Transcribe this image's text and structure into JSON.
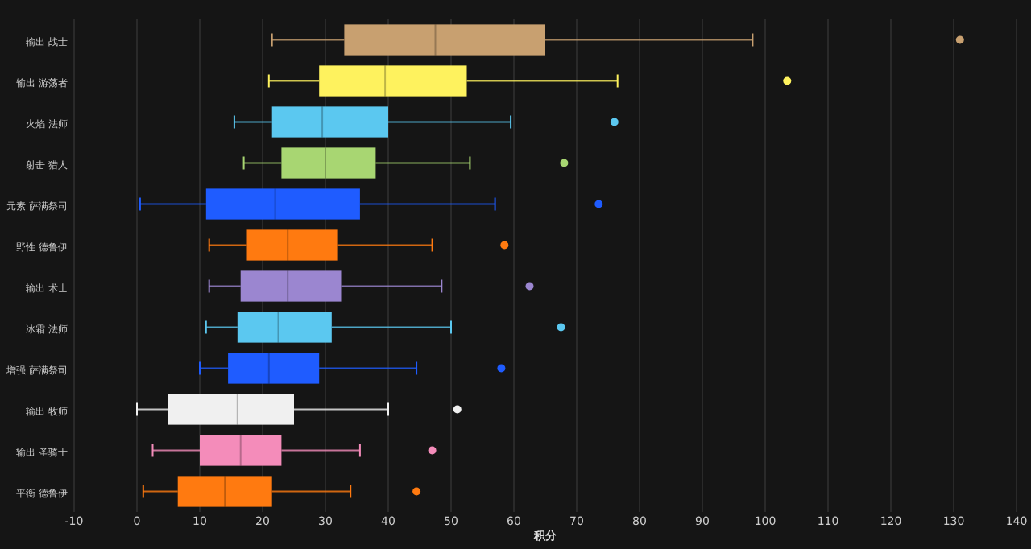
{
  "chart_data": {
    "type": "box",
    "orientation": "horizontal",
    "xlabel": "积分",
    "categories": [
      "输出 战士",
      "输出 游荡者",
      "火焰 法师",
      "射击 猎人",
      "元素 萨满祭司",
      "野性 德鲁伊",
      "输出 术士",
      "冰霜 法师",
      "增强 萨满祭司",
      "输出 牧师",
      "输出 圣骑士",
      "平衡 德鲁伊"
    ],
    "colors": [
      "#c8a070",
      "#fef25e",
      "#5bc8f0",
      "#a8d672",
      "#1f5cff",
      "#ff7a10",
      "#9b86d0",
      "#5bc8f0",
      "#1f5cff",
      "#f0f0f0",
      "#f48cba",
      "#ff7a10"
    ],
    "boxes": [
      {
        "low": 21.5,
        "q1": 33,
        "median": 47.5,
        "q3": 65,
        "high": 98,
        "outliers": [
          131
        ]
      },
      {
        "low": 21,
        "q1": 29,
        "median": 39.5,
        "q3": 52.5,
        "high": 76.5,
        "outliers": [
          103.5
        ]
      },
      {
        "low": 15.5,
        "q1": 21.5,
        "median": 29.5,
        "q3": 40,
        "high": 59.5,
        "outliers": [
          76
        ]
      },
      {
        "low": 17,
        "q1": 23,
        "median": 30,
        "q3": 38,
        "high": 53,
        "outliers": [
          68
        ]
      },
      {
        "low": 0.5,
        "q1": 11,
        "median": 22,
        "q3": 35.5,
        "high": 57,
        "outliers": [
          73.5
        ]
      },
      {
        "low": 11.5,
        "q1": 17.5,
        "median": 24,
        "q3": 32,
        "high": 47,
        "outliers": [
          58.5
        ]
      },
      {
        "low": 11.5,
        "q1": 16.5,
        "median": 24,
        "q3": 32.5,
        "high": 48.5,
        "outliers": [
          62.5
        ]
      },
      {
        "low": 11,
        "q1": 16,
        "median": 22.5,
        "q3": 31,
        "high": 50,
        "outliers": [
          67.5
        ]
      },
      {
        "low": 10,
        "q1": 14.5,
        "median": 21,
        "q3": 29,
        "high": 44.5,
        "outliers": [
          58
        ]
      },
      {
        "low": 0,
        "q1": 5,
        "median": 16,
        "q3": 25,
        "high": 40,
        "outliers": [
          51
        ]
      },
      {
        "low": 2.5,
        "q1": 10,
        "median": 16.5,
        "q3": 23,
        "high": 35.5,
        "outliers": [
          47
        ]
      },
      {
        "low": 1,
        "q1": 6.5,
        "median": 14,
        "q3": 21.5,
        "high": 34,
        "outliers": [
          44.5
        ]
      }
    ],
    "xlim": [
      -10,
      140
    ],
    "xticks": [
      -10,
      0,
      10,
      20,
      30,
      40,
      50,
      60,
      70,
      80,
      90,
      100,
      110,
      120,
      130,
      140
    ],
    "grid": "x"
  }
}
